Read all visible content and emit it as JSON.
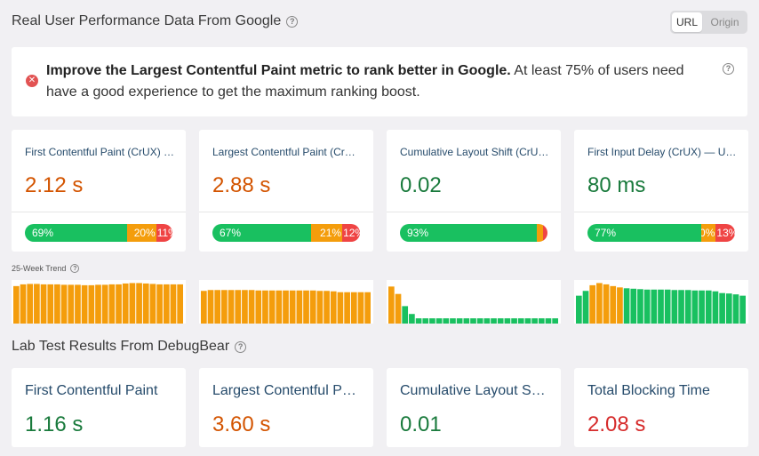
{
  "real_user": {
    "title": "Real User Performance Data From Google",
    "toggle": {
      "url_label": "URL",
      "origin_label": "Origin"
    }
  },
  "alert": {
    "bold_text": "Improve the Largest Contentful Paint metric to rank better in Google.",
    "text": " At least 75% of users need have a good experience to get the maximum ranking boost."
  },
  "crux_cards": [
    {
      "label": "First Contentful Paint (CrUX) …",
      "value": "2.12 s",
      "status": "orange",
      "good": 69,
      "ni": 20,
      "poor": 11,
      "good_label": "69%",
      "ni_label": "20%",
      "poor_label": "11%"
    },
    {
      "label": "Largest Contentful Paint (Cr…",
      "value": "2.88 s",
      "status": "orange",
      "good": 67,
      "ni": 21,
      "poor": 12,
      "good_label": "67%",
      "ni_label": "21%",
      "poor_label": "12%"
    },
    {
      "label": "Cumulative Layout Shift (CrU…",
      "value": "0.02",
      "status": "green",
      "good": 93,
      "ni": 4,
      "poor": 3,
      "good_label": "93%",
      "ni_label": "",
      "poor_label": ""
    },
    {
      "label": "First Input Delay (CrUX) — URL",
      "value": "80 ms",
      "status": "green",
      "good": 77,
      "ni": 10,
      "poor": 13,
      "good_label": "77%",
      "ni_label": "10%",
      "poor_label": "13%"
    }
  ],
  "trend": {
    "label": "25-Week Trend",
    "charts": [
      {
        "values": [
          0.86,
          0.9,
          0.91,
          0.91,
          0.9,
          0.9,
          0.9,
          0.89,
          0.89,
          0.89,
          0.88,
          0.88,
          0.89,
          0.89,
          0.9,
          0.9,
          0.92,
          0.93,
          0.93,
          0.92,
          0.91,
          0.9,
          0.9,
          0.9,
          0.9
        ],
        "colors": [
          "#f49d0c"
        ]
      },
      {
        "values": [
          0.75,
          0.77,
          0.77,
          0.77,
          0.77,
          0.77,
          0.77,
          0.77,
          0.76,
          0.76,
          0.76,
          0.76,
          0.76,
          0.76,
          0.76,
          0.76,
          0.76,
          0.75,
          0.75,
          0.74,
          0.72,
          0.72,
          0.72,
          0.72,
          0.72
        ],
        "colors": [
          "#f49d0c"
        ]
      },
      {
        "values": [
          0.85,
          0.68,
          0.4,
          0.22,
          0.12,
          0.12,
          0.12,
          0.12,
          0.12,
          0.12,
          0.12,
          0.12,
          0.12,
          0.12,
          0.12,
          0.12,
          0.12,
          0.12,
          0.12,
          0.12,
          0.12,
          0.12,
          0.12,
          0.12,
          0.12
        ],
        "colors": [
          "#f49d0c",
          "#f49d0c",
          "#19c060",
          "#19c060",
          "#19c060",
          "#19c060",
          "#19c060",
          "#19c060",
          "#19c060",
          "#19c060",
          "#19c060",
          "#19c060",
          "#19c060",
          "#19c060",
          "#19c060",
          "#19c060",
          "#19c060",
          "#19c060",
          "#19c060",
          "#19c060",
          "#19c060",
          "#19c060",
          "#19c060",
          "#19c060",
          "#19c060"
        ]
      },
      {
        "values": [
          0.64,
          0.75,
          0.88,
          0.93,
          0.9,
          0.86,
          0.83,
          0.81,
          0.8,
          0.79,
          0.78,
          0.78,
          0.78,
          0.78,
          0.77,
          0.77,
          0.77,
          0.76,
          0.76,
          0.76,
          0.74,
          0.7,
          0.69,
          0.67,
          0.64
        ],
        "colors": [
          "#19c060",
          "#19c060",
          "#f49d0c",
          "#f49d0c",
          "#f49d0c",
          "#f49d0c",
          "#f49d0c",
          "#19c060",
          "#19c060",
          "#19c060",
          "#19c060",
          "#19c060",
          "#19c060",
          "#19c060",
          "#19c060",
          "#19c060",
          "#19c060",
          "#19c060",
          "#19c060",
          "#19c060",
          "#19c060",
          "#19c060",
          "#19c060",
          "#19c060",
          "#19c060"
        ]
      }
    ]
  },
  "lab": {
    "title": "Lab Test Results From DebugBear",
    "cards": [
      {
        "label": "First Contentful Paint",
        "value": "1.16 s",
        "status": "green"
      },
      {
        "label": "Largest Contentful P…",
        "value": "3.60 s",
        "status": "orange"
      },
      {
        "label": "Cumulative Layout S…",
        "value": "0.01",
        "status": "green"
      },
      {
        "label": "Total Blocking Time",
        "value": "2.08 s",
        "status": "red"
      }
    ]
  },
  "colors": {
    "good": "#19c060",
    "needs_improvement": "#f49d0c",
    "poor": "#ef4444",
    "orange_text": "#d35400",
    "green_text": "#197a3c",
    "red_text": "#d62b2b"
  }
}
